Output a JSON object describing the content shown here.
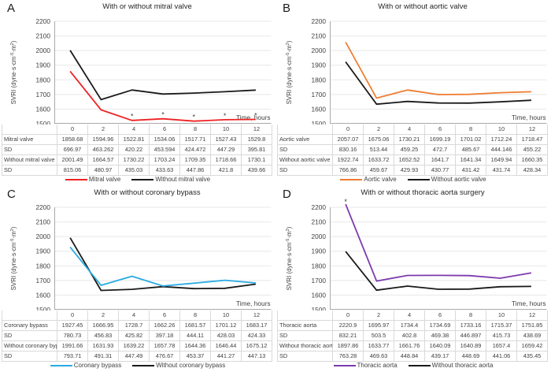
{
  "figure": {
    "sd_label": "SD",
    "xlabel": "Time, hours",
    "ylabel": "SVRI (dyne·s·cm-5·m2)",
    "ylabel_parts": [
      {
        "text": "SVRI (dyne·s·cm"
      },
      {
        "text": "-5",
        "sup": true
      },
      {
        "text": "·m"
      },
      {
        "text": "2",
        "sup": true
      },
      {
        "text": ")"
      }
    ],
    "x_ticks": [
      0,
      2,
      4,
      6,
      8,
      10,
      12
    ],
    "y_ticks": [
      1500,
      1600,
      1700,
      1800,
      1900,
      2000,
      2100,
      2200
    ],
    "ylim": [
      1500,
      2200
    ],
    "grid": true,
    "legend_position": "bottom",
    "colors": {
      "grid": "#e8e8e8",
      "axis": "#a9a9a9",
      "text": "#404040",
      "table_border": "#d9d9d9",
      "black_series": "#1a1a1a"
    }
  },
  "chart_data": [
    {
      "type": "line",
      "panel": "A",
      "title": "With or without mitral valve",
      "x": [
        0,
        2,
        4,
        6,
        8,
        10,
        12
      ],
      "xlabel": "Time, hours",
      "ylabel": "SVRI (dyne·s·cm-5·m2)",
      "ylim": [
        1500,
        2200
      ],
      "series": [
        {
          "name": "Mitral valve",
          "color": "#ed2224",
          "values": [
            1858.68,
            1594.96,
            1522.81,
            1534.06,
            1517.71,
            1527.43,
            1529.8
          ],
          "sd": [
            696.97,
            463.262,
            420.22,
            453.594,
            424.472,
            447.29,
            395.81
          ]
        },
        {
          "name": "Without mitral valve",
          "color": "#1a1a1a",
          "values": [
            2001.49,
            1664.57,
            1730.22,
            1703.24,
            1709.35,
            1718.66,
            1730.1
          ],
          "sd": [
            815.06,
            480.97,
            435.03,
            433.63,
            447.86,
            421.8,
            439.66
          ]
        }
      ],
      "asterisks": [
        {
          "x": 4,
          "y": 1556
        },
        {
          "x": 6,
          "y": 1567
        },
        {
          "x": 8,
          "y": 1551
        },
        {
          "x": 10,
          "y": 1560
        },
        {
          "x": 12,
          "y": 1563
        }
      ]
    },
    {
      "type": "line",
      "panel": "B",
      "title": "With or without aortic valve",
      "x": [
        0,
        2,
        4,
        6,
        8,
        10,
        12
      ],
      "xlabel": "Time, hours",
      "ylabel": "SVRI (dyne·s·cm-5·m2)",
      "ylim": [
        1500,
        2200
      ],
      "series": [
        {
          "name": "Aortic valve",
          "color": "#ee7d31",
          "values": [
            2057.07,
            1675.06,
            1730.21,
            1699.19,
            1701.02,
            1712.24,
            1718.47
          ],
          "sd": [
            830.16,
            513.44,
            459.25,
            472.7,
            485.67,
            444.146,
            455.22
          ]
        },
        {
          "name": "Without aortic valve",
          "color": "#1a1a1a",
          "values": [
            1922.74,
            1633.72,
            1652.52,
            1641.7,
            1641.34,
            1649.94,
            1660.35
          ],
          "sd": [
            766.86,
            459.67,
            429.93,
            430.77,
            431.42,
            431.74,
            428.34
          ]
        }
      ],
      "asterisks": []
    },
    {
      "type": "line",
      "panel": "C",
      "title": "With or without coronary bypass",
      "x": [
        0,
        2,
        4,
        6,
        8,
        10,
        12
      ],
      "xlabel": "Time, hours",
      "ylabel": "SVRI (dyne·s·cm-5·m2)",
      "ylim": [
        1500,
        2200
      ],
      "series": [
        {
          "name": "Coronary bypass",
          "color": "#29abe2",
          "values": [
            1927.45,
            1666.95,
            1728.7,
            1662.26,
            1681.57,
            1701.12,
            1683.17
          ],
          "sd": [
            780.73,
            456.83,
            425.82,
            397.18,
            444.11,
            428.03,
            424.33
          ]
        },
        {
          "name": "Without coronary bypass",
          "color": "#1a1a1a",
          "values": [
            1991.66,
            1631.93,
            1639.22,
            1657.78,
            1644.36,
            1646.44,
            1675.12
          ],
          "sd": [
            793.71,
            491.31,
            447.49,
            476.67,
            453.37,
            441.27,
            447.13
          ]
        }
      ],
      "asterisks": []
    },
    {
      "type": "line",
      "panel": "D",
      "title": "With or without thoracic aorta surgery",
      "x": [
        0,
        2,
        4,
        6,
        8,
        10,
        12
      ],
      "xlabel": "Time, hours",
      "ylabel": "SVRI (dyne·s·cm-5·m2)",
      "ylim": [
        1500,
        2200
      ],
      "series": [
        {
          "name": "Thoracic aorta",
          "color": "#7c3aad",
          "values": [
            2220.9,
            1695.97,
            1734.4,
            1734.69,
            1733.16,
            1715.37,
            1751.85
          ],
          "sd": [
            832.21,
            503.5,
            402.8,
            469.38,
            446.897,
            415.73,
            438.69
          ]
        },
        {
          "name": "Without thoracic aorta",
          "color": "#1a1a1a",
          "values": [
            1897.86,
            1633.77,
            1661.76,
            1640.09,
            1640.89,
            1657.4,
            1659.42
          ],
          "sd": [
            763.28,
            469.63,
            448.84,
            439.17,
            448.69,
            441.06,
            435.45
          ]
        }
      ],
      "asterisks": [
        {
          "x": 0,
          "y": 2244
        }
      ]
    }
  ]
}
